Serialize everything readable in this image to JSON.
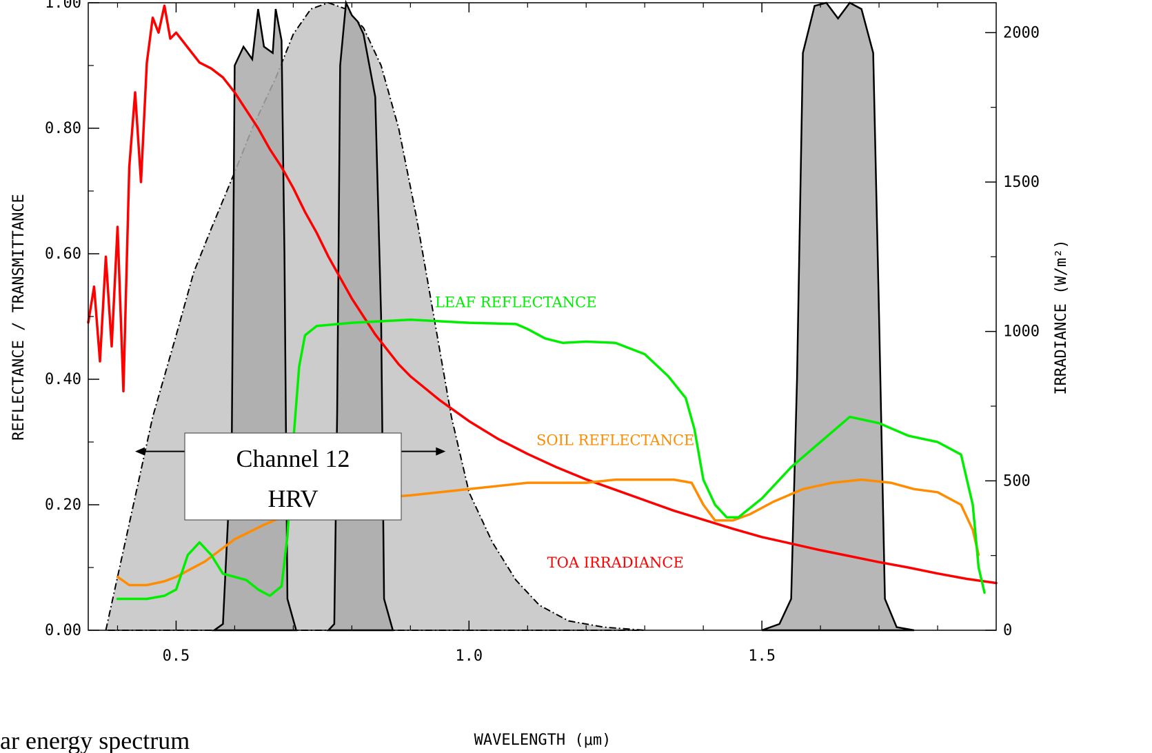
{
  "caption": "ar energy spectrum",
  "chart_data": {
    "type": "line",
    "xlabel": "WAVELENGTH (μm)",
    "ylabel_left": "REFLECTANCE / TRANSMITTANCE",
    "ylabel_right": "IRRADIANCE (W/m²)",
    "xlim": [
      0.35,
      1.9
    ],
    "ylim_left": [
      0,
      1.0
    ],
    "ylim_right": [
      0,
      2100
    ],
    "x_ticks": [
      {
        "v": 0.5,
        "label": "0.5"
      },
      {
        "v": 1.0,
        "label": "1.0"
      },
      {
        "v": 1.5,
        "label": "1.5"
      }
    ],
    "left_ticks": [
      {
        "v": 0.0,
        "label": "0.00"
      },
      {
        "v": 0.2,
        "label": "0.20"
      },
      {
        "v": 0.4,
        "label": "0.40"
      },
      {
        "v": 0.6,
        "label": "0.60"
      },
      {
        "v": 0.8,
        "label": "0.80"
      },
      {
        "v": 1.0,
        "label": "1.00"
      }
    ],
    "right_ticks": [
      {
        "v": 0,
        "label": "0"
      },
      {
        "v": 500,
        "label": "500"
      },
      {
        "v": 1000,
        "label": "1000"
      },
      {
        "v": 1500,
        "label": "1500"
      },
      {
        "v": 2000,
        "label": "2000"
      }
    ],
    "colors": {
      "hrv": "#cccccc",
      "channel": "#aaaaaa",
      "leaf": "#00ee00",
      "soil": "#ff8c00",
      "toa": "#ff0000"
    },
    "annotation": {
      "line1": "Channel 12",
      "line2": "HRV",
      "arrow_from": 0.43,
      "arrow_to": 0.96,
      "arrow_y": 0.285
    },
    "series": [
      {
        "id": "hrv",
        "axis": "left",
        "style": "filled-dashdot",
        "points": [
          [
            0.38,
            0.0
          ],
          [
            0.42,
            0.17
          ],
          [
            0.46,
            0.34
          ],
          [
            0.5,
            0.47
          ],
          [
            0.53,
            0.57
          ],
          [
            0.56,
            0.64
          ],
          [
            0.6,
            0.73
          ],
          [
            0.63,
            0.8
          ],
          [
            0.67,
            0.88
          ],
          [
            0.7,
            0.95
          ],
          [
            0.73,
            0.99
          ],
          [
            0.76,
            1.0
          ],
          [
            0.79,
            0.99
          ],
          [
            0.82,
            0.96
          ],
          [
            0.85,
            0.9
          ],
          [
            0.88,
            0.8
          ],
          [
            0.91,
            0.66
          ],
          [
            0.94,
            0.5
          ],
          [
            0.97,
            0.34
          ],
          [
            1.0,
            0.22
          ],
          [
            1.04,
            0.14
          ],
          [
            1.08,
            0.08
          ],
          [
            1.12,
            0.04
          ],
          [
            1.17,
            0.015
          ],
          [
            1.23,
            0.005
          ],
          [
            1.3,
            0.0
          ]
        ]
      },
      {
        "id": "ch06",
        "axis": "left",
        "style": "filled",
        "points": [
          [
            0.565,
            0.0
          ],
          [
            0.58,
            0.01
          ],
          [
            0.595,
            0.3
          ],
          [
            0.6,
            0.9
          ],
          [
            0.615,
            0.93
          ],
          [
            0.63,
            0.91
          ],
          [
            0.64,
            0.99
          ],
          [
            0.65,
            0.93
          ],
          [
            0.665,
            0.92
          ],
          [
            0.67,
            0.99
          ],
          [
            0.68,
            0.94
          ],
          [
            0.685,
            0.6
          ],
          [
            0.69,
            0.05
          ],
          [
            0.705,
            0.0
          ]
        ]
      },
      {
        "id": "ch08",
        "axis": "left",
        "style": "filled",
        "points": [
          [
            0.76,
            0.0
          ],
          [
            0.77,
            0.01
          ],
          [
            0.775,
            0.35
          ],
          [
            0.78,
            0.9
          ],
          [
            0.79,
            1.0
          ],
          [
            0.8,
            0.98
          ],
          [
            0.81,
            0.97
          ],
          [
            0.82,
            0.95
          ],
          [
            0.83,
            0.9
          ],
          [
            0.84,
            0.85
          ],
          [
            0.85,
            0.5
          ],
          [
            0.855,
            0.05
          ],
          [
            0.87,
            0.0
          ]
        ]
      },
      {
        "id": "ch16",
        "axis": "left",
        "style": "filled",
        "points": [
          [
            1.5,
            0.0
          ],
          [
            1.53,
            0.01
          ],
          [
            1.55,
            0.05
          ],
          [
            1.56,
            0.4
          ],
          [
            1.57,
            0.92
          ],
          [
            1.59,
            0.995
          ],
          [
            1.61,
            1.0
          ],
          [
            1.63,
            0.975
          ],
          [
            1.65,
            1.0
          ],
          [
            1.67,
            0.99
          ],
          [
            1.69,
            0.92
          ],
          [
            1.7,
            0.5
          ],
          [
            1.71,
            0.05
          ],
          [
            1.73,
            0.005
          ],
          [
            1.76,
            0.0
          ]
        ]
      },
      {
        "id": "toa",
        "axis": "right",
        "name": "TOA IRRADIANCE",
        "points": [
          [
            0.35,
            1030
          ],
          [
            0.36,
            1150
          ],
          [
            0.37,
            900
          ],
          [
            0.38,
            1250
          ],
          [
            0.39,
            950
          ],
          [
            0.4,
            1350
          ],
          [
            0.41,
            800
          ],
          [
            0.42,
            1550
          ],
          [
            0.43,
            1800
          ],
          [
            0.44,
            1500
          ],
          [
            0.45,
            1900
          ],
          [
            0.46,
            2050
          ],
          [
            0.47,
            2000
          ],
          [
            0.48,
            2090
          ],
          [
            0.49,
            1980
          ],
          [
            0.5,
            2000
          ],
          [
            0.52,
            1950
          ],
          [
            0.54,
            1900
          ],
          [
            0.56,
            1880
          ],
          [
            0.58,
            1850
          ],
          [
            0.6,
            1800
          ],
          [
            0.62,
            1740
          ],
          [
            0.64,
            1680
          ],
          [
            0.66,
            1610
          ],
          [
            0.68,
            1550
          ],
          [
            0.7,
            1480
          ],
          [
            0.72,
            1400
          ],
          [
            0.74,
            1330
          ],
          [
            0.76,
            1250
          ],
          [
            0.78,
            1180
          ],
          [
            0.8,
            1110
          ],
          [
            0.82,
            1050
          ],
          [
            0.84,
            990
          ],
          [
            0.86,
            940
          ],
          [
            0.88,
            890
          ],
          [
            0.9,
            850
          ],
          [
            0.95,
            770
          ],
          [
            1.0,
            700
          ],
          [
            1.05,
            640
          ],
          [
            1.1,
            590
          ],
          [
            1.15,
            545
          ],
          [
            1.2,
            505
          ],
          [
            1.25,
            470
          ],
          [
            1.3,
            435
          ],
          [
            1.35,
            400
          ],
          [
            1.4,
            370
          ],
          [
            1.45,
            340
          ],
          [
            1.5,
            312
          ],
          [
            1.55,
            290
          ],
          [
            1.6,
            268
          ],
          [
            1.65,
            248
          ],
          [
            1.7,
            228
          ],
          [
            1.75,
            210
          ],
          [
            1.8,
            190
          ],
          [
            1.85,
            172
          ],
          [
            1.9,
            158
          ]
        ]
      },
      {
        "id": "leaf",
        "axis": "left",
        "name": "LEAF REFLECTANCE",
        "points": [
          [
            0.4,
            0.05
          ],
          [
            0.45,
            0.05
          ],
          [
            0.48,
            0.055
          ],
          [
            0.5,
            0.065
          ],
          [
            0.52,
            0.12
          ],
          [
            0.54,
            0.14
          ],
          [
            0.56,
            0.12
          ],
          [
            0.58,
            0.09
          ],
          [
            0.6,
            0.085
          ],
          [
            0.62,
            0.08
          ],
          [
            0.64,
            0.065
          ],
          [
            0.66,
            0.055
          ],
          [
            0.68,
            0.07
          ],
          [
            0.69,
            0.15
          ],
          [
            0.7,
            0.3
          ],
          [
            0.71,
            0.42
          ],
          [
            0.72,
            0.47
          ],
          [
            0.74,
            0.485
          ],
          [
            0.8,
            0.49
          ],
          [
            0.9,
            0.495
          ],
          [
            1.0,
            0.49
          ],
          [
            1.08,
            0.488
          ],
          [
            1.1,
            0.48
          ],
          [
            1.13,
            0.465
          ],
          [
            1.16,
            0.458
          ],
          [
            1.2,
            0.46
          ],
          [
            1.25,
            0.458
          ],
          [
            1.3,
            0.44
          ],
          [
            1.34,
            0.405
          ],
          [
            1.37,
            0.37
          ],
          [
            1.385,
            0.32
          ],
          [
            1.4,
            0.24
          ],
          [
            1.42,
            0.2
          ],
          [
            1.44,
            0.18
          ],
          [
            1.46,
            0.18
          ],
          [
            1.5,
            0.21
          ],
          [
            1.55,
            0.26
          ],
          [
            1.6,
            0.3
          ],
          [
            1.65,
            0.34
          ],
          [
            1.7,
            0.33
          ],
          [
            1.75,
            0.31
          ],
          [
            1.8,
            0.3
          ],
          [
            1.84,
            0.28
          ],
          [
            1.86,
            0.2
          ],
          [
            1.87,
            0.1
          ],
          [
            1.88,
            0.06
          ]
        ]
      },
      {
        "id": "soil",
        "axis": "left",
        "name": "SOIL REFLECTANCE",
        "points": [
          [
            0.4,
            0.085
          ],
          [
            0.42,
            0.072
          ],
          [
            0.45,
            0.072
          ],
          [
            0.48,
            0.078
          ],
          [
            0.5,
            0.085
          ],
          [
            0.55,
            0.11
          ],
          [
            0.6,
            0.145
          ],
          [
            0.65,
            0.168
          ],
          [
            0.7,
            0.188
          ],
          [
            0.75,
            0.2
          ],
          [
            0.8,
            0.208
          ],
          [
            0.9,
            0.215
          ],
          [
            1.0,
            0.225
          ],
          [
            1.1,
            0.235
          ],
          [
            1.2,
            0.235
          ],
          [
            1.25,
            0.24
          ],
          [
            1.3,
            0.24
          ],
          [
            1.35,
            0.24
          ],
          [
            1.38,
            0.235
          ],
          [
            1.4,
            0.2
          ],
          [
            1.42,
            0.175
          ],
          [
            1.45,
            0.175
          ],
          [
            1.48,
            0.185
          ],
          [
            1.52,
            0.205
          ],
          [
            1.57,
            0.225
          ],
          [
            1.62,
            0.235
          ],
          [
            1.67,
            0.24
          ],
          [
            1.72,
            0.235
          ],
          [
            1.76,
            0.225
          ],
          [
            1.8,
            0.22
          ],
          [
            1.84,
            0.2
          ],
          [
            1.86,
            0.16
          ],
          [
            1.87,
            0.12
          ]
        ]
      }
    ],
    "labels": [
      {
        "series": "leaf",
        "text": "LEAF REFLECTANCE",
        "x": 1.08,
        "y": 0.515
      },
      {
        "series": "soil",
        "text": "SOIL REFLECTANCE",
        "x": 1.25,
        "y": 0.295
      },
      {
        "series": "toa",
        "text": "TOA IRRADIANCE",
        "x": 1.25,
        "y": 0.1
      }
    ]
  }
}
